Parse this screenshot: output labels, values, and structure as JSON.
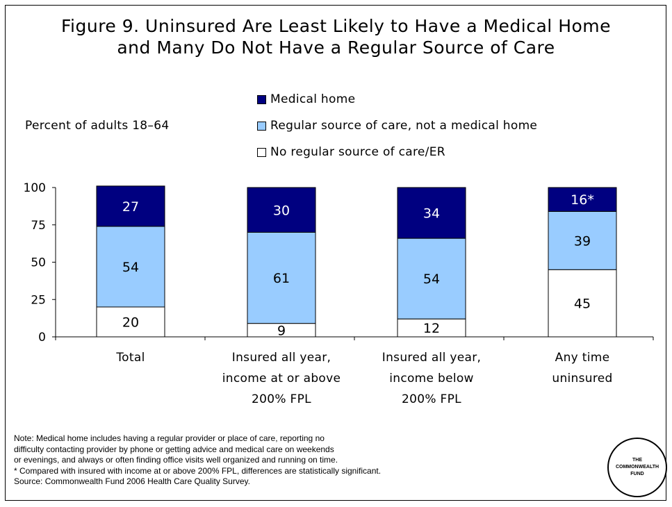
{
  "title_line1": "Figure 9. Uninsured Are Least Likely to Have a Medical Home",
  "title_line2": "and Many Do Not Have a Regular Source of Care",
  "ylabel": "Percent of adults 18–64",
  "colors": {
    "medical_home": "#000080",
    "regular_source": "#99ccff",
    "no_regular": "#ffffff"
  },
  "chart_data": {
    "type": "bar",
    "stacked": true,
    "ylabel": "Percent of adults 18–64",
    "ylim": [
      0,
      100
    ],
    "yticks": [
      "0",
      "25",
      "50",
      "75",
      "100"
    ],
    "categories": [
      [
        "Total"
      ],
      [
        "Insured all year,",
        "income at or above",
        "200% FPL"
      ],
      [
        "Insured all year,",
        "income below",
        "200% FPL"
      ],
      [
        "Any time",
        "uninsured"
      ]
    ],
    "series": [
      {
        "name": "No regular source of care/ER",
        "values": [
          20,
          9,
          12,
          45
        ],
        "labels": [
          "20",
          "9",
          "12",
          "45"
        ]
      },
      {
        "name": "Regular source of care, not a medical home",
        "values": [
          54,
          61,
          54,
          39
        ],
        "labels": [
          "54",
          "61",
          "54",
          "39"
        ]
      },
      {
        "name": "Medical home",
        "values": [
          27,
          30,
          34,
          16
        ],
        "labels": [
          "27",
          "30",
          "34",
          "16*"
        ]
      }
    ],
    "legend_order": [
      "Medical home",
      "Regular source of care, not a medical home",
      "No regular source of care/ER"
    ],
    "legend_position": "top-right"
  },
  "notes": [
    "Note: Medical home includes having a regular provider or place of care, reporting no",
    "difficulty contacting provider by phone or getting advice and medical care on weekends",
    "or evenings, and always or often finding office visits well organized and running on time.",
    "* Compared with insured with income at or above 200% FPL, differences are statistically significant.",
    "Source: Commonwealth Fund 2006 Health Care Quality Survey."
  ],
  "logo": {
    "line1": "THE",
    "line2": "COMMONWEALTH",
    "line3": "FUND"
  }
}
